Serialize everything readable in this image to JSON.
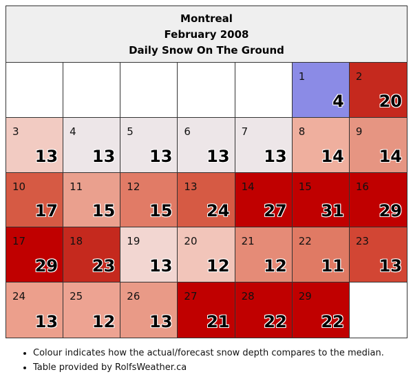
{
  "header": {
    "city": "Montreal",
    "month": "February 2008",
    "subtitle": "Daily Snow On The Ground"
  },
  "cells": [
    {
      "day": "",
      "value": "",
      "color": "#ffffff"
    },
    {
      "day": "",
      "value": "",
      "color": "#ffffff"
    },
    {
      "day": "",
      "value": "",
      "color": "#ffffff"
    },
    {
      "day": "",
      "value": "",
      "color": "#ffffff"
    },
    {
      "day": "",
      "value": "",
      "color": "#ffffff"
    },
    {
      "day": "1",
      "value": "4",
      "color": "#8b8be6"
    },
    {
      "day": "2",
      "value": "20",
      "color": "#c5291e"
    },
    {
      "day": "3",
      "value": "13",
      "color": "#f2cbc2"
    },
    {
      "day": "4",
      "value": "13",
      "color": "#ede6e8"
    },
    {
      "day": "5",
      "value": "13",
      "color": "#ede6e8"
    },
    {
      "day": "6",
      "value": "13",
      "color": "#ede6e8"
    },
    {
      "day": "7",
      "value": "13",
      "color": "#ede6e8"
    },
    {
      "day": "8",
      "value": "14",
      "color": "#efaf9e"
    },
    {
      "day": "9",
      "value": "14",
      "color": "#e69582"
    },
    {
      "day": "10",
      "value": "17",
      "color": "#d65a44"
    },
    {
      "day": "11",
      "value": "15",
      "color": "#eaa08e"
    },
    {
      "day": "12",
      "value": "15",
      "color": "#e17b66"
    },
    {
      "day": "13",
      "value": "24",
      "color": "#d65a44"
    },
    {
      "day": "14",
      "value": "27",
      "color": "#c00000"
    },
    {
      "day": "15",
      "value": "31",
      "color": "#c00000"
    },
    {
      "day": "16",
      "value": "29",
      "color": "#c00000"
    },
    {
      "day": "17",
      "value": "29",
      "color": "#c00000"
    },
    {
      "day": "18",
      "value": "23",
      "color": "#c5291e"
    },
    {
      "day": "19",
      "value": "13",
      "color": "#f2d6d1"
    },
    {
      "day": "20",
      "value": "12",
      "color": "#f2c5ba"
    },
    {
      "day": "21",
      "value": "12",
      "color": "#e58b77"
    },
    {
      "day": "22",
      "value": "11",
      "color": "#e07a64"
    },
    {
      "day": "23",
      "value": "13",
      "color": "#d24634"
    },
    {
      "day": "24",
      "value": "13",
      "color": "#ec9f8c"
    },
    {
      "day": "25",
      "value": "12",
      "color": "#eda392"
    },
    {
      "day": "26",
      "value": "13",
      "color": "#e99a87"
    },
    {
      "day": "27",
      "value": "21",
      "color": "#c00000"
    },
    {
      "day": "28",
      "value": "22",
      "color": "#c00000"
    },
    {
      "day": "29",
      "value": "22",
      "color": "#c00000"
    },
    {
      "day": "",
      "value": "",
      "color": "#ffffff"
    }
  ],
  "notes": [
    "Colour indicates how the actual/forecast snow depth compares to the median.",
    "Table provided by RolfsWeather.ca"
  ]
}
